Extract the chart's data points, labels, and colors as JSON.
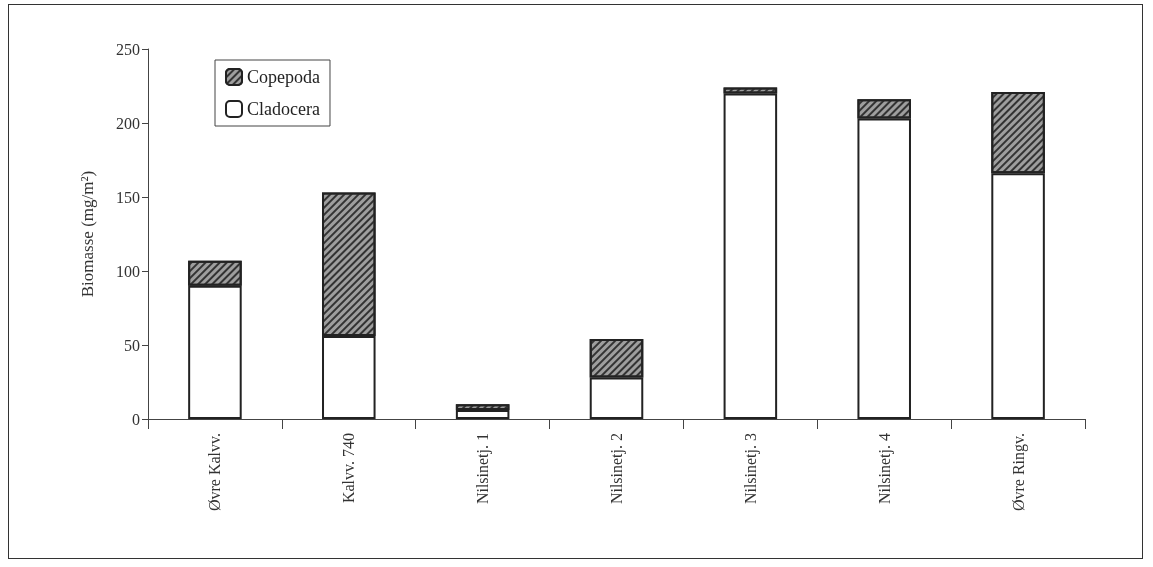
{
  "chart_data": {
    "type": "bar",
    "ylabel": "Biomasse (mg/m²)",
    "stacked": true,
    "grid": false,
    "legend": "top left",
    "categories": [
      "Øvre Kalvv.",
      "Kalvv. 740",
      "Nilsinetj. 1",
      "Nilsinetj. 2",
      "Nilsinetj. 3",
      "Nilsinetj. 4",
      "Øvre Ringv."
    ],
    "ylim": [
      0,
      250
    ],
    "yticks": [
      0,
      50,
      100,
      150,
      200,
      250
    ],
    "series": [
      {
        "name": "Cladocera",
        "color": "#ffffff",
        "values": [
          90,
          56,
          6,
          28,
          220,
          203,
          166
        ]
      },
      {
        "name": "Copepoda",
        "color": "#9e9e9e",
        "values": [
          17,
          97,
          4,
          26,
          4,
          13,
          55
        ]
      }
    ]
  }
}
